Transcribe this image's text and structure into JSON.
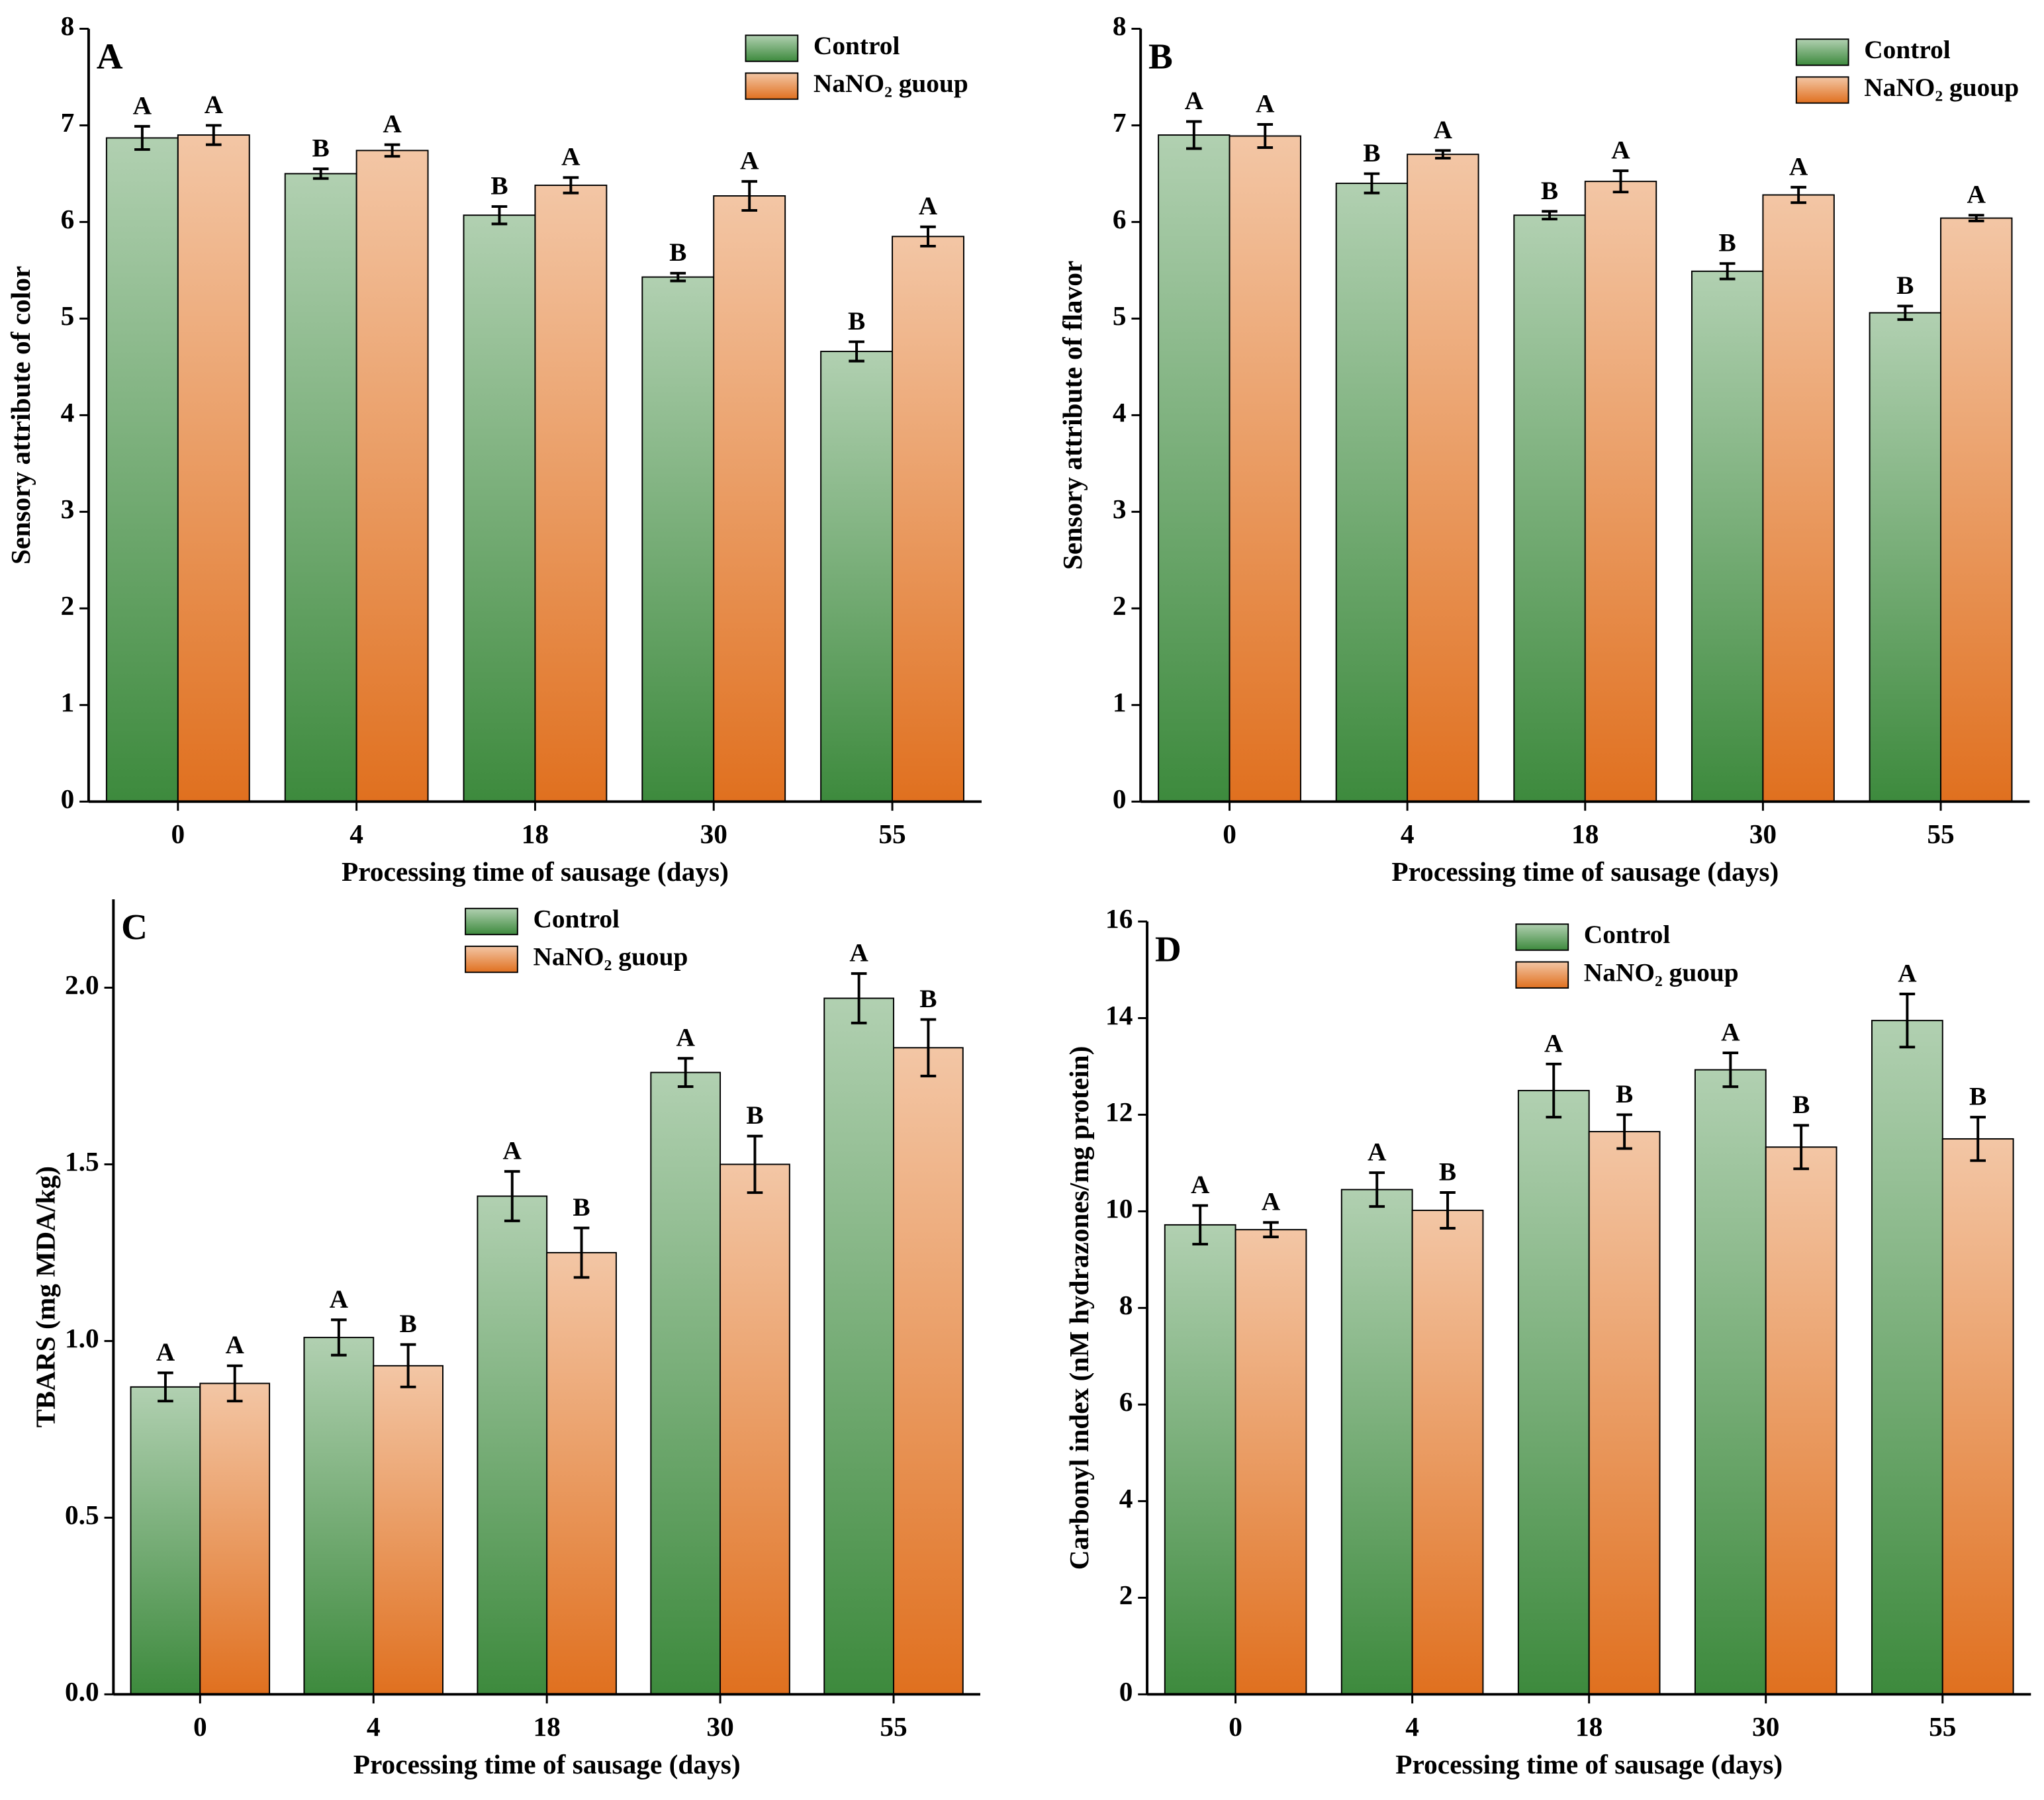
{
  "chart_data": [
    {
      "type": "bar",
      "panel_label": "A",
      "xlabel": "Processing time of sausage (days)",
      "ylabel": "Sensory attribute of color",
      "categories": [
        "0",
        "4",
        "18",
        "30",
        "55"
      ],
      "ylim": [
        0,
        8
      ],
      "yticks": [
        0,
        1,
        2,
        3,
        4,
        5,
        6,
        7,
        8
      ],
      "legend": "upper right",
      "series": [
        {
          "name": "Control",
          "color": "#3d8a3d",
          "values": [
            6.87,
            6.5,
            6.07,
            5.43,
            4.66
          ],
          "errors": [
            0.12,
            0.05,
            0.09,
            0.04,
            0.1
          ],
          "labels": [
            "A",
            "B",
            "B",
            "B",
            "B"
          ]
        },
        {
          "name": "NaNO₂ guoup",
          "color": "#e0701f",
          "values": [
            6.9,
            6.74,
            6.38,
            6.27,
            5.85
          ],
          "errors": [
            0.1,
            0.06,
            0.08,
            0.15,
            0.1
          ],
          "labels": [
            "A",
            "A",
            "A",
            "A",
            "A"
          ]
        }
      ]
    },
    {
      "type": "bar",
      "panel_label": "B",
      "xlabel": "Processing time of sausage (days)",
      "ylabel": "Sensory attribute of flavor",
      "categories": [
        "0",
        "4",
        "18",
        "30",
        "55"
      ],
      "ylim": [
        0,
        8
      ],
      "yticks": [
        0,
        1,
        2,
        3,
        4,
        5,
        6,
        7,
        8
      ],
      "legend": "upper right",
      "series": [
        {
          "name": "Control",
          "color": "#3d8a3d",
          "values": [
            6.9,
            6.4,
            6.07,
            5.49,
            5.06
          ],
          "errors": [
            0.14,
            0.1,
            0.04,
            0.08,
            0.07
          ],
          "labels": [
            "A",
            "B",
            "B",
            "B",
            "B"
          ]
        },
        {
          "name": "NaNO₂ guoup",
          "color": "#e0701f",
          "values": [
            6.89,
            6.7,
            6.42,
            6.28,
            6.04
          ],
          "errors": [
            0.12,
            0.04,
            0.11,
            0.08,
            0.03
          ],
          "labels": [
            "A",
            "A",
            "A",
            "A",
            "A"
          ]
        }
      ]
    },
    {
      "type": "bar",
      "panel_label": "C",
      "xlabel": "Processing time of sausage (days)",
      "ylabel": "TBARS (mg MDA/kg)",
      "categories": [
        "0",
        "4",
        "18",
        "30",
        "55"
      ],
      "ylim": [
        0,
        2.25
      ],
      "yticks": [
        {
          "value": 0,
          "label": "0.0"
        },
        0.5,
        {
          "value": 1,
          "label": "1.0"
        },
        1.5,
        {
          "value": 2,
          "label": "2.0"
        }
      ],
      "legend": "upper center",
      "series": [
        {
          "name": "Control",
          "color": "#3d8a3d",
          "values": [
            0.87,
            1.01,
            1.41,
            1.76,
            1.97
          ],
          "errors": [
            0.04,
            0.05,
            0.07,
            0.04,
            0.07
          ],
          "labels": [
            "A",
            "A",
            "A",
            "A",
            "A"
          ]
        },
        {
          "name": "NaNO₂ guoup",
          "color": "#e0701f",
          "values": [
            0.88,
            0.93,
            1.25,
            1.5,
            1.83
          ],
          "errors": [
            0.05,
            0.06,
            0.07,
            0.08,
            0.08
          ],
          "labels": [
            "A",
            "B",
            "B",
            "B",
            "B"
          ]
        }
      ]
    },
    {
      "type": "bar",
      "panel_label": "D",
      "xlabel": "Processing time of sausage (days)",
      "ylabel": "Carbonyl index (nM hydrazones/mg protein)",
      "categories": [
        "0",
        "4",
        "18",
        "30",
        "55"
      ],
      "ylim": [
        0,
        16
      ],
      "yticks": [
        0,
        2,
        4,
        6,
        8,
        10,
        12,
        14,
        16
      ],
      "legend": "upper center",
      "series": [
        {
          "name": "Control",
          "color": "#3d8a3d",
          "values": [
            9.72,
            10.45,
            12.5,
            12.93,
            13.95
          ],
          "errors": [
            0.4,
            0.35,
            0.55,
            0.35,
            0.55
          ],
          "labels": [
            "A",
            "A",
            "A",
            "A",
            "A"
          ]
        },
        {
          "name": "NaNO₂ guoup",
          "color": "#e0701f",
          "values": [
            9.62,
            10.02,
            11.65,
            11.33,
            11.5
          ],
          "errors": [
            0.15,
            0.37,
            0.35,
            0.45,
            0.45
          ],
          "labels": [
            "A",
            "B",
            "B",
            "B",
            "B"
          ]
        }
      ]
    }
  ]
}
